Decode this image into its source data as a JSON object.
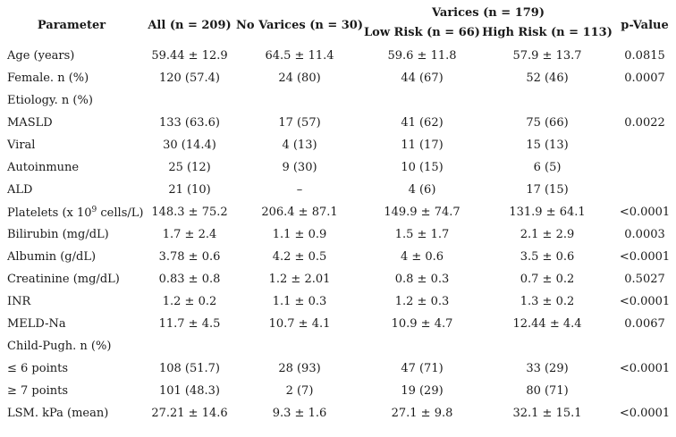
{
  "headers": {
    "parameter": "Parameter",
    "all": "All (n = 209)",
    "no_varices": "No Varices (n = 30)",
    "varices": "Varices (n = 179)",
    "low_risk": "Low Risk (n = 66)",
    "high_risk": "High Risk (n = 113)",
    "p_value": "p-Value"
  },
  "platelets_label": {
    "pre": "Platelets (x 10",
    "sup": "9",
    "post": " cells/L)"
  },
  "rows": [
    {
      "label": "Age (years)",
      "all": "59.44 ± 12.9",
      "none": "64.5 ± 11.4",
      "low": "59.6 ± 11.8",
      "high": "57.9 ± 13.7",
      "p": "0.0815"
    },
    {
      "label": "Female. n (%)",
      "all": "120 (57.4)",
      "none": "24 (80)",
      "low": "44 (67)",
      "high": "52 (46)",
      "p": "0.0007"
    },
    {
      "label": "Etiology. n (%)",
      "all": "",
      "none": "",
      "low": "",
      "high": "",
      "p": ""
    },
    {
      "label": "MASLD",
      "all": "133 (63.6)",
      "none": "17 (57)",
      "low": "41 (62)",
      "high": "75 (66)",
      "p": "0.0022"
    },
    {
      "label": "Viral",
      "all": "30 (14.4)",
      "none": "4 (13)",
      "low": "11 (17)",
      "high": "15 (13)",
      "p": ""
    },
    {
      "label": "Autoinmune",
      "all": "25 (12)",
      "none": "9 (30)",
      "low": "10 (15)",
      "high": "6 (5)",
      "p": ""
    },
    {
      "label": "ALD",
      "all": "21 (10)",
      "none": "–",
      "low": "4 (6)",
      "high": "17 (15)",
      "p": ""
    },
    {
      "label": "",
      "all": "148.3 ± 75.2",
      "none": "206.4 ± 87.1",
      "low": "149.9 ± 74.7",
      "high": "131.9 ± 64.1",
      "p": "<0.0001"
    },
    {
      "label": "Bilirubin (mg/dL)",
      "all": "1.7 ± 2.4",
      "none": "1.1 ± 0.9",
      "low": "1.5 ± 1.7",
      "high": "2.1 ± 2.9",
      "p": "0.0003"
    },
    {
      "label": "Albumin (g/dL)",
      "all": "3.78 ± 0.6",
      "none": "4.2 ± 0.5",
      "low": "4 ± 0.6",
      "high": "3.5 ± 0.6",
      "p": "<0.0001"
    },
    {
      "label": "Creatinine (mg/dL)",
      "all": "0.83 ± 0.8",
      "none": "1.2 ± 2.01",
      "low": "0.8 ± 0.3",
      "high": "0.7 ± 0.2",
      "p": "0.5027"
    },
    {
      "label": "INR",
      "all": "1.2 ± 0.2",
      "none": "1.1 ± 0.3",
      "low": "1.2 ± 0.3",
      "high": "1.3 ± 0.2",
      "p": "<0.0001"
    },
    {
      "label": "MELD-Na",
      "all": "11.7 ± 4.5",
      "none": "10.7 ± 4.1",
      "low": "10.9 ± 4.7",
      "high": "12.44 ± 4.4",
      "p": "0.0067"
    },
    {
      "label": "Child-Pugh. n (%)",
      "all": "",
      "none": "",
      "low": "",
      "high": "",
      "p": ""
    },
    {
      "label": "≤ 6 points",
      "all": "108 (51.7)",
      "none": "28 (93)",
      "low": "47 (71)",
      "high": "33 (29)",
      "p": "<0.0001"
    },
    {
      "label": "≥ 7 points",
      "all": "101 (48.3)",
      "none": "2 (7)",
      "low": "19 (29)",
      "high": "80 (71)",
      "p": ""
    },
    {
      "label": "LSM. kPa (mean)",
      "all": "27.21 ± 14.6",
      "none": "9.3 ± 1.6",
      "low": "27.1 ± 9.8",
      "high": "32.1 ± 15.1",
      "p": "<0.0001"
    }
  ]
}
